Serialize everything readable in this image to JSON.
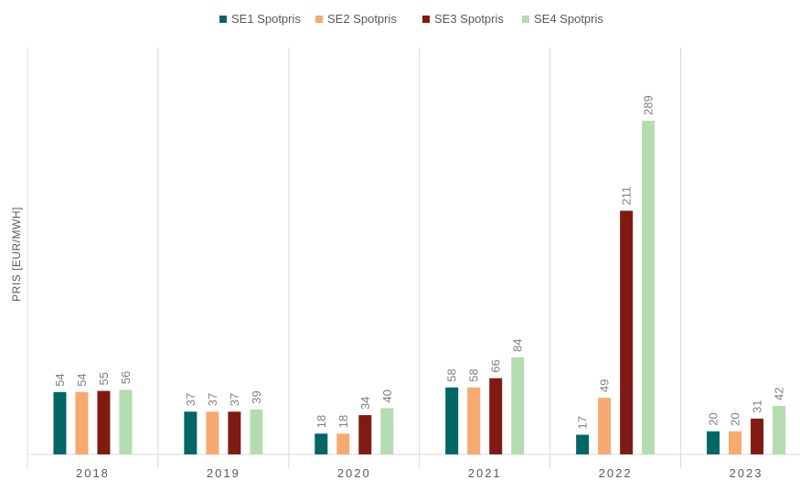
{
  "chart_data": {
    "type": "bar",
    "title": "",
    "xlabel": "",
    "ylabel": "PRIS [EUR/MWH]",
    "categories": [
      "2018",
      "2019",
      "2020",
      "2021",
      "2022",
      "2023"
    ],
    "series": [
      {
        "name": "SE1 Spotpris",
        "color": "#006666",
        "values": [
          54,
          37,
          18,
          58,
          17,
          20
        ]
      },
      {
        "name": "SE2 Spotpris",
        "color": "#f7a96f",
        "values": [
          54,
          37,
          18,
          58,
          49,
          20
        ]
      },
      {
        "name": "SE3 Spotpris",
        "color": "#7f1b12",
        "values": [
          55,
          37,
          34,
          66,
          211,
          31
        ]
      },
      {
        "name": "SE4 Spotpris",
        "color": "#b4dcb0",
        "values": [
          56,
          39,
          40,
          84,
          289,
          42
        ]
      }
    ],
    "ylim": [
      0,
      340
    ],
    "grid": false,
    "legend": "top-center",
    "data_labels": true
  }
}
